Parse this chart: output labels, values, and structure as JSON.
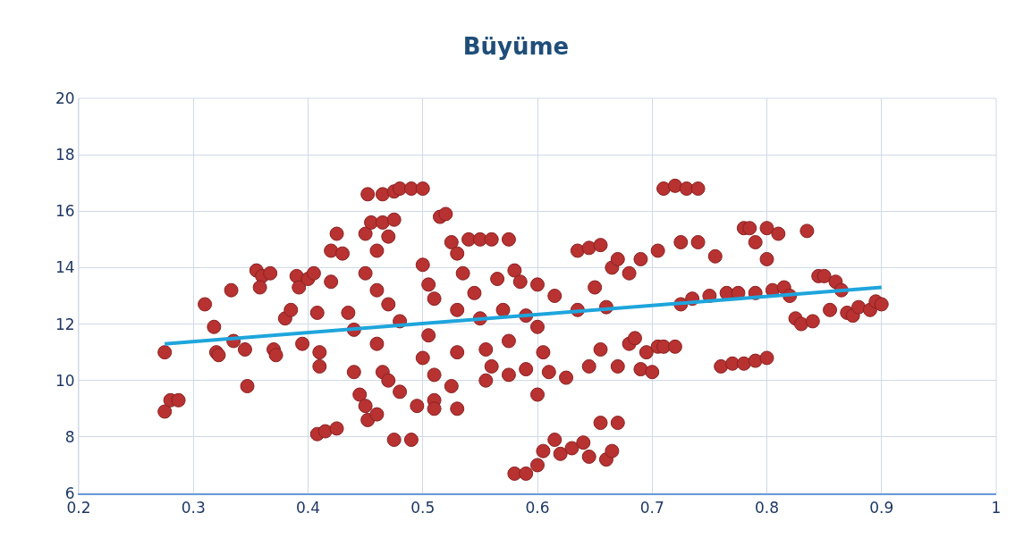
{
  "chart_data": {
    "type": "scatter",
    "title": "Büyüme",
    "xlim": [
      0.2,
      1
    ],
    "xticks": [
      0.2,
      0.3,
      0.4,
      0.5,
      0.6,
      0.7,
      0.8,
      0.9,
      1
    ],
    "ylim": [
      6,
      20
    ],
    "yticks": [
      6,
      8,
      10,
      12,
      14,
      16,
      18,
      20
    ],
    "grid": true,
    "series": [
      {
        "marker": "circle",
        "color": "#b83232",
        "x": [
          0.275,
          0.275,
          0.28,
          0.287,
          0.31,
          0.318,
          0.32,
          0.322,
          0.333,
          0.335,
          0.345,
          0.347,
          0.355,
          0.36,
          0.358,
          0.367,
          0.37,
          0.372,
          0.38,
          0.385,
          0.39,
          0.392,
          0.395,
          0.4,
          0.405,
          0.408,
          0.41,
          0.41,
          0.408,
          0.415,
          0.425,
          0.42,
          0.42,
          0.425,
          0.43,
          0.435,
          0.44,
          0.44,
          0.445,
          0.45,
          0.452,
          0.46,
          0.45,
          0.452,
          0.465,
          0.475,
          0.48,
          0.49,
          0.5,
          0.455,
          0.465,
          0.475,
          0.47,
          0.46,
          0.45,
          0.46,
          0.47,
          0.48,
          0.46,
          0.465,
          0.47,
          0.475,
          0.49,
          0.48,
          0.495,
          0.5,
          0.505,
          0.51,
          0.505,
          0.5,
          0.51,
          0.51,
          0.51,
          0.515,
          0.52,
          0.525,
          0.53,
          0.535,
          0.53,
          0.53,
          0.525,
          0.53,
          0.54,
          0.55,
          0.56,
          0.575,
          0.545,
          0.55,
          0.555,
          0.56,
          0.555,
          0.565,
          0.57,
          0.575,
          0.58,
          0.585,
          0.575,
          0.59,
          0.59,
          0.6,
          0.6,
          0.605,
          0.6,
          0.61,
          0.58,
          0.59,
          0.6,
          0.605,
          0.615,
          0.62,
          0.63,
          0.64,
          0.645,
          0.655,
          0.66,
          0.665,
          0.67,
          0.615,
          0.625,
          0.635,
          0.635,
          0.645,
          0.645,
          0.655,
          0.65,
          0.655,
          0.66,
          0.665,
          0.67,
          0.67,
          0.68,
          0.68,
          0.685,
          0.69,
          0.69,
          0.695,
          0.7,
          0.705,
          0.71,
          0.705,
          0.71,
          0.72,
          0.73,
          0.74,
          0.725,
          0.725,
          0.72,
          0.735,
          0.74,
          0.75,
          0.755,
          0.76,
          0.77,
          0.78,
          0.79,
          0.8,
          0.765,
          0.775,
          0.78,
          0.785,
          0.79,
          0.79,
          0.8,
          0.81,
          0.8,
          0.805,
          0.815,
          0.82,
          0.825,
          0.83,
          0.835,
          0.84,
          0.845,
          0.85,
          0.855,
          0.86,
          0.865,
          0.87,
          0.875,
          0.88,
          0.89,
          0.895,
          0.9
        ],
        "values": [
          11.0,
          8.9,
          9.3,
          9.3,
          12.7,
          11.9,
          11.0,
          10.9,
          13.2,
          11.4,
          11.1,
          9.8,
          13.9,
          13.7,
          13.3,
          13.8,
          11.1,
          10.9,
          12.2,
          12.5,
          13.7,
          13.3,
          11.3,
          13.6,
          13.8,
          12.4,
          11.0,
          10.5,
          8.1,
          8.2,
          8.3,
          13.5,
          14.6,
          15.2,
          14.5,
          12.4,
          11.8,
          10.3,
          9.5,
          9.1,
          8.6,
          8.8,
          15.2,
          16.6,
          16.6,
          16.7,
          16.8,
          16.8,
          16.8,
          15.6,
          15.6,
          15.7,
          15.1,
          14.6,
          13.8,
          13.2,
          12.7,
          12.1,
          11.3,
          10.3,
          10.0,
          7.9,
          7.9,
          9.6,
          9.1,
          14.1,
          13.4,
          12.9,
          11.6,
          10.8,
          10.2,
          9.3,
          9.0,
          15.8,
          15.9,
          14.9,
          14.5,
          13.8,
          12.5,
          11.0,
          9.8,
          9.0,
          15.0,
          15.0,
          15.0,
          15.0,
          13.1,
          12.2,
          11.1,
          10.5,
          10.0,
          13.6,
          12.5,
          11.4,
          13.9,
          13.5,
          10.2,
          12.3,
          10.4,
          13.4,
          11.9,
          11.0,
          9.5,
          10.3,
          6.7,
          6.7,
          7.0,
          7.5,
          7.9,
          7.4,
          7.6,
          7.8,
          7.3,
          8.5,
          7.2,
          7.5,
          8.5,
          13.0,
          10.1,
          12.5,
          14.6,
          10.5,
          14.7,
          14.8,
          13.3,
          11.1,
          12.6,
          14.0,
          10.5,
          14.3,
          11.3,
          13.8,
          11.5,
          10.4,
          14.3,
          11.0,
          10.3,
          11.2,
          11.2,
          14.6,
          16.8,
          16.9,
          16.8,
          16.8,
          12.7,
          14.9,
          11.2,
          12.9,
          14.9,
          13.0,
          14.4,
          10.5,
          10.6,
          10.6,
          10.7,
          10.8,
          13.1,
          13.1,
          15.4,
          15.4,
          14.9,
          13.1,
          15.4,
          15.2,
          14.3,
          13.2,
          13.3,
          13.0,
          12.2,
          12.0,
          15.3,
          12.1,
          13.7,
          13.7,
          12.5,
          13.5,
          13.2,
          12.4,
          12.3,
          12.6,
          12.5,
          12.8,
          12.7
        ]
      },
      {
        "type": "line",
        "color": "#1ea5dc",
        "x": [
          0.275,
          0.9
        ],
        "values": [
          11.3,
          13.3
        ]
      }
    ]
  }
}
